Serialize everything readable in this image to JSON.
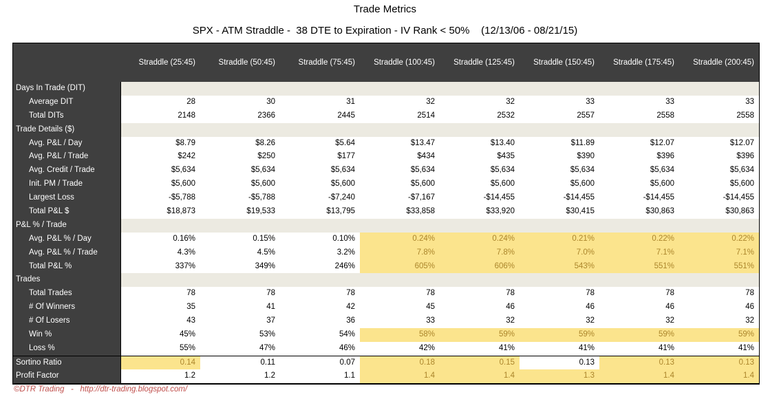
{
  "title": "Trade Metrics",
  "subtitle": "SPX - ATM Straddle -  38 DTE to Expiration - IV Rank < 50%    (12/13/06 - 08/21/15)",
  "footer_credit": "©DTR Trading   -   http://dtr-trading.blogspot.com/",
  "colors": {
    "header_dark": "#3F3F3F",
    "section_band": "#ECEAE1",
    "highlight_fill": "#FBE48D",
    "highlight_text": "#AC862C",
    "footer_red": "#C0504D"
  },
  "table": {
    "columns": [
      "Straddle (25:45)",
      "Straddle (50:45)",
      "Straddle (75:45)",
      "Straddle (100:45)",
      "Straddle (125:45)",
      "Straddle (150:45)",
      "Straddle (175:45)",
      "Straddle (200:45)"
    ],
    "rows": [
      {
        "label": "Days In Trade (DIT)",
        "section": true
      },
      {
        "label": "Average DIT",
        "indent": true,
        "values": [
          "28",
          "30",
          "31",
          "32",
          "32",
          "33",
          "33",
          "33"
        ],
        "highlight": []
      },
      {
        "label": "Total DITs",
        "indent": true,
        "values": [
          "2148",
          "2366",
          "2445",
          "2514",
          "2532",
          "2557",
          "2558",
          "2558"
        ],
        "highlight": []
      },
      {
        "label": "Trade Details ($)",
        "section": true
      },
      {
        "label": "Avg. P&L / Day",
        "indent": true,
        "values": [
          "$8.79",
          "$8.26",
          "$5.64",
          "$13.47",
          "$13.40",
          "$11.89",
          "$12.07",
          "$12.07"
        ],
        "highlight": []
      },
      {
        "label": "Avg. P&L / Trade",
        "indent": true,
        "values": [
          "$242",
          "$250",
          "$177",
          "$434",
          "$435",
          "$390",
          "$396",
          "$396"
        ],
        "highlight": []
      },
      {
        "label": "Avg.  Credit / Trade",
        "indent": true,
        "values": [
          "$5,634",
          "$5,634",
          "$5,634",
          "$5,634",
          "$5,634",
          "$5,634",
          "$5,634",
          "$5,634"
        ],
        "highlight": []
      },
      {
        "label": "Init. PM / Trade",
        "indent": true,
        "values": [
          "$5,600",
          "$5,600",
          "$5,600",
          "$5,600",
          "$5,600",
          "$5,600",
          "$5,600",
          "$5,600"
        ],
        "highlight": []
      },
      {
        "label": "Largest Loss",
        "indent": true,
        "values": [
          "-$5,788",
          "-$5,788",
          "-$7,240",
          "-$7,167",
          "-$14,455",
          "-$14,455",
          "-$14,455",
          "-$14,455"
        ],
        "highlight": []
      },
      {
        "label": "Total P&L $",
        "indent": true,
        "values": [
          "$18,873",
          "$19,533",
          "$13,795",
          "$33,858",
          "$33,920",
          "$30,415",
          "$30,863",
          "$30,863"
        ],
        "highlight": []
      },
      {
        "label": "P&L % / Trade",
        "section": true
      },
      {
        "label": "Avg. P&L % / Day",
        "indent": true,
        "values": [
          "0.16%",
          "0.15%",
          "0.10%",
          "0.24%",
          "0.24%",
          "0.21%",
          "0.22%",
          "0.22%"
        ],
        "highlight": [
          3,
          4,
          5,
          6,
          7
        ]
      },
      {
        "label": "Avg. P&L % / Trade",
        "indent": true,
        "values": [
          "4.3%",
          "4.5%",
          "3.2%",
          "7.8%",
          "7.8%",
          "7.0%",
          "7.1%",
          "7.1%"
        ],
        "highlight": [
          3,
          4,
          5,
          6,
          7
        ]
      },
      {
        "label": "Total P&L %",
        "indent": true,
        "values": [
          "337%",
          "349%",
          "246%",
          "605%",
          "606%",
          "543%",
          "551%",
          "551%"
        ],
        "highlight": [
          3,
          4,
          5,
          6,
          7
        ]
      },
      {
        "label": "Trades",
        "section": true
      },
      {
        "label": "Total Trades",
        "indent": true,
        "values": [
          "78",
          "78",
          "78",
          "78",
          "78",
          "78",
          "78",
          "78"
        ],
        "highlight": []
      },
      {
        "label": "# Of Winners",
        "indent": true,
        "values": [
          "35",
          "41",
          "42",
          "45",
          "46",
          "46",
          "46",
          "46"
        ],
        "highlight": []
      },
      {
        "label": "# Of Losers",
        "indent": true,
        "values": [
          "43",
          "37",
          "36",
          "33",
          "32",
          "32",
          "32",
          "32"
        ],
        "highlight": []
      },
      {
        "label": "Win %",
        "indent": true,
        "values": [
          "45%",
          "53%",
          "54%",
          "58%",
          "59%",
          "59%",
          "59%",
          "59%"
        ],
        "highlight": [
          3,
          4,
          5,
          6,
          7
        ]
      },
      {
        "label": "Loss %",
        "indent": true,
        "values": [
          "55%",
          "47%",
          "46%",
          "42%",
          "41%",
          "41%",
          "41%",
          "41%"
        ],
        "highlight": []
      },
      {
        "label": "Sortino Ratio",
        "indent": false,
        "values": [
          "0.14",
          "0.11",
          "0.07",
          "0.18",
          "0.15",
          "0.13",
          "0.13",
          "0.13"
        ],
        "highlight": [
          0,
          3,
          4,
          6,
          7
        ]
      },
      {
        "label": "Profit Factor",
        "indent": false,
        "values": [
          "1.2",
          "1.2",
          "1.1",
          "1.4",
          "1.4",
          "1.3",
          "1.4",
          "1.4"
        ],
        "highlight": [
          3,
          4,
          5,
          6,
          7
        ]
      }
    ]
  }
}
